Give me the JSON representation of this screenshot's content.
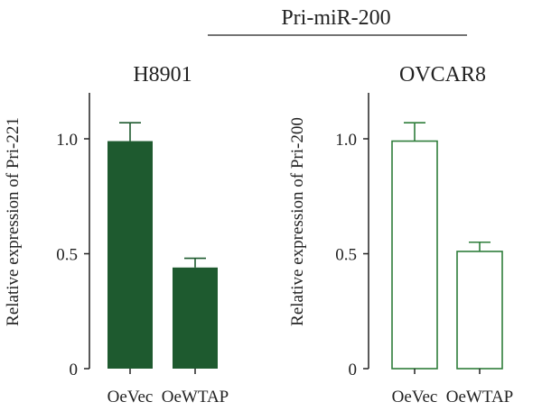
{
  "header": {
    "label": "Pri-miR-200"
  },
  "chart_data": [
    {
      "type": "bar",
      "title": "H8901",
      "xlabel": "",
      "ylabel": "Relative expression of Pri-221",
      "categories": [
        "OeVec",
        "OeWTAP"
      ],
      "values": [
        0.99,
        0.44
      ],
      "errors": [
        0.08,
        0.04
      ],
      "ylim": [
        0,
        1.2
      ],
      "yticks": [
        0,
        0.5,
        1.0
      ],
      "ytick_labels": [
        "0",
        "0.5",
        "1.0"
      ],
      "style": "filled",
      "color": "#1e5a2f",
      "grid": false
    },
    {
      "type": "bar",
      "title": "OVCAR8",
      "xlabel": "",
      "ylabel": "Relative expression of Pri-200",
      "categories": [
        "OeVec",
        "OeWTAP"
      ],
      "values": [
        0.99,
        0.51
      ],
      "errors": [
        0.08,
        0.04
      ],
      "ylim": [
        0,
        1.2
      ],
      "yticks": [
        0,
        0.5,
        1.0
      ],
      "ytick_labels": [
        "0",
        "0.5",
        "1.0"
      ],
      "style": "outline",
      "color": "#2e7d3a",
      "grid": false
    }
  ]
}
